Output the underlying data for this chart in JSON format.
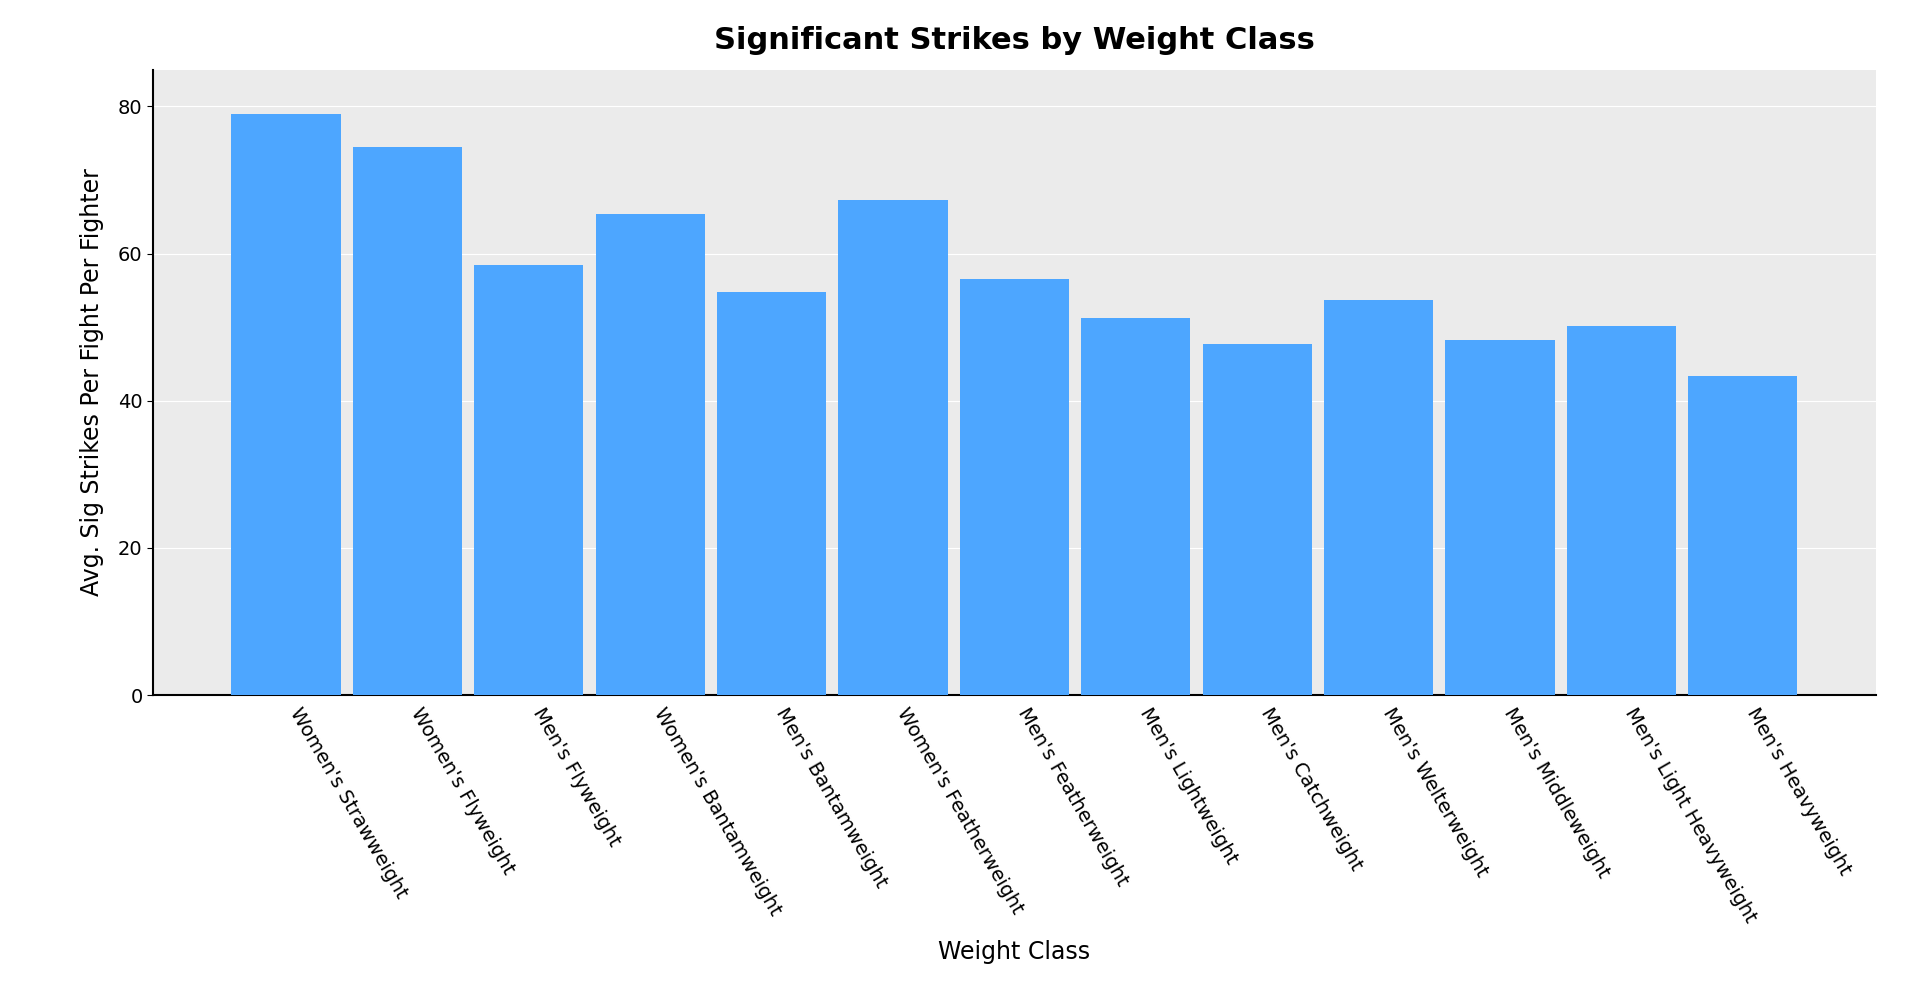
{
  "title": "Significant Strikes by Weight Class",
  "xlabel": "Weight Class",
  "ylabel": "Avg. Sig Strikes Per Fight Per Fighter",
  "categories": [
    "Women's Strawweight",
    "Women's Flyweight",
    "Men's Flyweight",
    "Women's Bantamweight",
    "Men's Bantamweight",
    "Women's Featherweight",
    "Men's Featherweight",
    "Men's Lightweight",
    "Men's Catchweight",
    "Men's Welterweight",
    "Men's Middleweight",
    "Men's Light Heavyweight",
    "Men's Heavyweight"
  ],
  "values": [
    79.0,
    74.5,
    58.5,
    65.3,
    54.8,
    67.3,
    56.5,
    51.2,
    47.7,
    53.7,
    48.2,
    50.2,
    43.3
  ],
  "bar_color": "#4DA6FF",
  "ylim": [
    0,
    85
  ],
  "yticks": [
    0,
    20,
    40,
    60,
    80
  ],
  "background_color": "#FFFFFF",
  "panel_background": "#EBEBEB",
  "grid_color": "#FFFFFF",
  "spine_color": "#000000",
  "title_fontsize": 22,
  "axis_label_fontsize": 17,
  "tick_fontsize": 14,
  "bar_width": 0.9
}
